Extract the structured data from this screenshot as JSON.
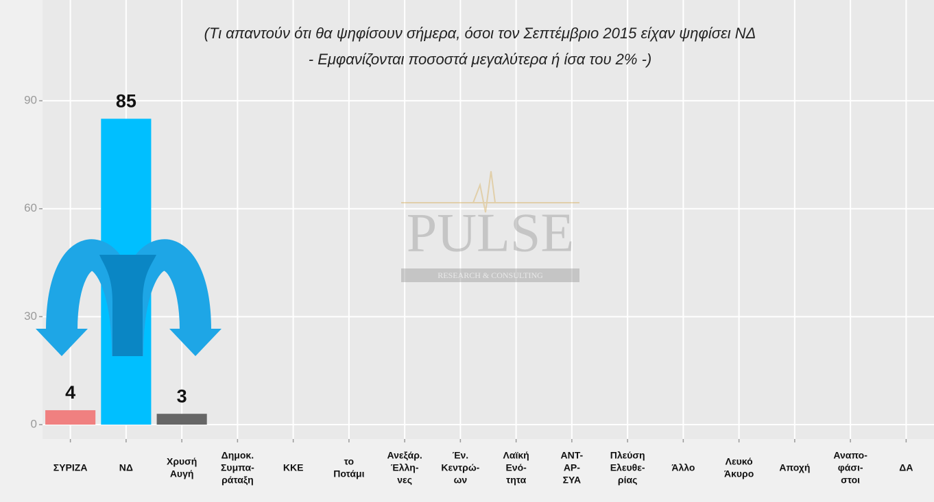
{
  "chart_data": {
    "type": "bar",
    "subtitle": [
      "(Τι απαντούν ότι θα ψηφίσουν σήμερα, όσοι τον Σεπτέμβριο 2015 είχαν ψηφίσει ΝΔ",
      "- Εμφανίζονται ποσοστά μεγαλύτερα ή ίσα του 2% -)"
    ],
    "categories": [
      [
        "ΣΥΡΙΖΑ"
      ],
      [
        "ΝΔ"
      ],
      [
        "Χρυσή",
        "Αυγή"
      ],
      [
        "Δημοκ.",
        "Συμπα-",
        "ράταξη"
      ],
      [
        "ΚΚΕ"
      ],
      [
        "το",
        "Ποτάμι"
      ],
      [
        "Ανεξάρ.",
        "Έλλη-",
        "νες"
      ],
      [
        "Έν.",
        "Κεντρώ-",
        "ων"
      ],
      [
        "Λαϊκή",
        "Ενό-",
        "τητα"
      ],
      [
        "ΑΝΤ-",
        "ΑΡ-",
        "ΣΥΑ"
      ],
      [
        "Πλεύση",
        "Ελευθε-",
        "ρίας"
      ],
      [
        "Άλλο"
      ],
      [
        "Λευκό",
        "Άκυρο"
      ],
      [
        "Αποχή"
      ],
      [
        "Αναπο-",
        "φάσι-",
        "στοι"
      ],
      [
        "ΔΑ"
      ]
    ],
    "values": [
      4,
      85,
      3,
      null,
      null,
      null,
      null,
      null,
      null,
      null,
      null,
      null,
      null,
      null,
      null,
      null
    ],
    "colors": [
      "#f08080",
      "#00bfff",
      "#666666",
      null,
      null,
      null,
      null,
      null,
      null,
      null,
      null,
      null,
      null,
      null,
      null,
      null
    ],
    "ylim": [
      -4,
      118
    ],
    "yticks": [
      0,
      30,
      60,
      90
    ],
    "grid": true,
    "watermark": [
      "PULSE",
      "RESEARCH & CONSULTING"
    ]
  }
}
